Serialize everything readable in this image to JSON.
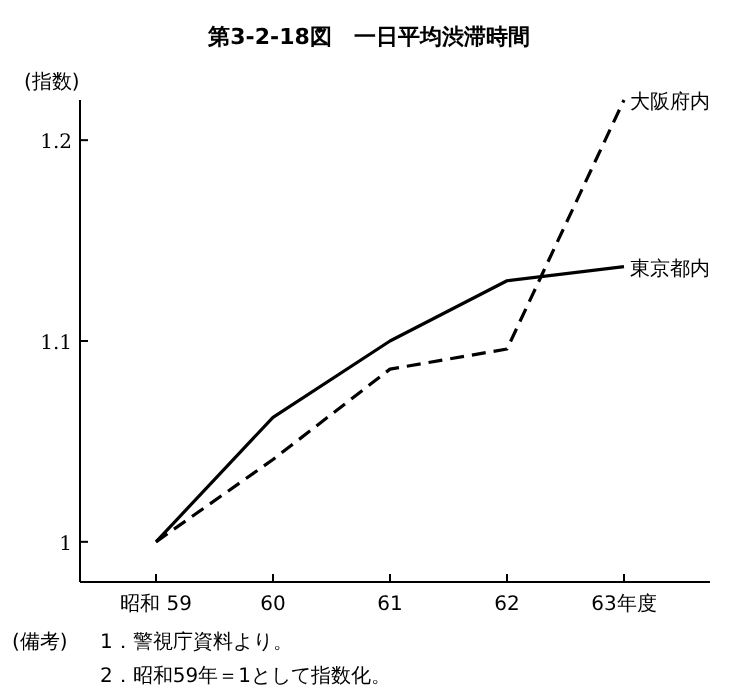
{
  "chart_data": {
    "type": "line",
    "title": "第3-2-18図　一日平均渋滞時間",
    "ylabel": "(指数)",
    "categories": [
      "昭和 59",
      "60",
      "61",
      "62",
      "63年度"
    ],
    "series": [
      {
        "name": "東京都内",
        "color": "#000000",
        "line_style": "solid",
        "values": [
          1.0,
          1.062,
          1.1,
          1.13,
          1.137
        ]
      },
      {
        "name": "大阪府内",
        "color": "#000000",
        "line_style": "dashed",
        "values": [
          1.0,
          1.041,
          1.086,
          1.096,
          1.22
        ]
      }
    ],
    "ylim": [
      0.98,
      1.22
    ],
    "yticks": [
      1,
      1.1,
      1.2
    ],
    "annotations": [
      "(備考)",
      "1．警視庁資料より。",
      "2．昭和59年＝1として指数化。"
    ]
  }
}
